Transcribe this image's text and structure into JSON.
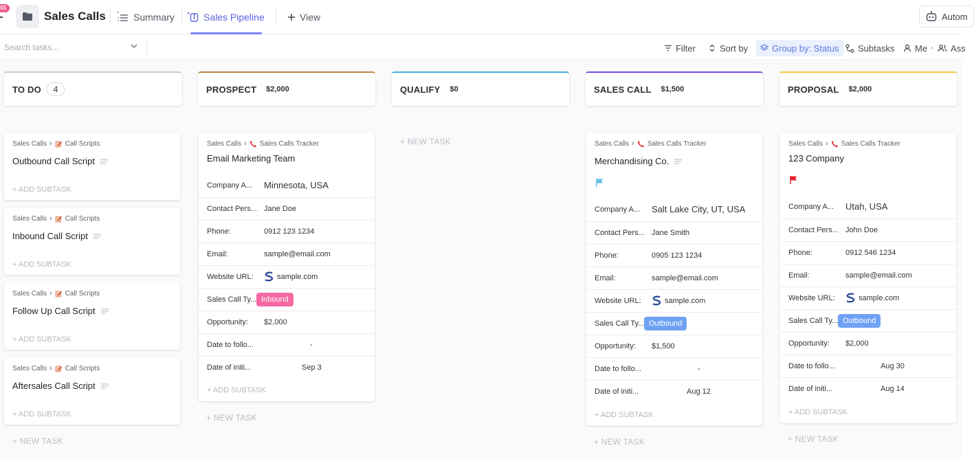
{
  "window": {
    "notification_count": "01",
    "title": "Sales Calls",
    "tabs": [
      {
        "label": "Summary"
      },
      {
        "label": "Sales Pipeline"
      },
      {
        "label": "View"
      }
    ],
    "automate_label": "Autom"
  },
  "toolbar": {
    "search_placeholder": "Search tasks...",
    "filter": "Filter",
    "sort": "Sort by",
    "group": "Group by: Status",
    "subtasks": "Subtasks",
    "me": "Me",
    "assignees": "Ass"
  },
  "columns": [
    {
      "name": "TO DO",
      "count": "4",
      "color": "#c8cacf"
    },
    {
      "name": "PROSPECT",
      "amount": "$2,000",
      "color": "#b98544"
    },
    {
      "name": "QUALIFY",
      "amount": "$0",
      "color": "#41b5e3"
    },
    {
      "name": "SALES CALL",
      "amount": "$1,500",
      "color": "#7a4de0"
    },
    {
      "name": "PROPOSAL",
      "amount": "$2,000",
      "color": "#f2cb3c"
    }
  ],
  "field_labels": {
    "company": "Company A...",
    "contact": "Contact Pers...",
    "phone": "Phone:",
    "email": "Email:",
    "website": "Website URL:",
    "type": "Sales Call Ty...",
    "opportunity": "Opportunity:",
    "follow": "Date to follo...",
    "initial": "Date of initi..."
  },
  "todo_cards": [
    {
      "crumb_list": "Sales Calls",
      "crumb_folder": "Call Scripts",
      "title": "Outbound Call Script",
      "add_subtask": "+ ADD SUBTASK"
    },
    {
      "crumb_list": "Sales Calls",
      "crumb_folder": "Call Scripts",
      "title": "Inbound Call Script",
      "add_subtask": "+ ADD SUBTASK"
    },
    {
      "crumb_list": "Sales Calls",
      "crumb_folder": "Call Scripts",
      "title": "Follow Up Call Script",
      "add_subtask": "+ ADD SUBTASK"
    },
    {
      "crumb_list": "Sales Calls",
      "crumb_folder": "Call Scripts",
      "title": "Aftersales Call Script",
      "add_subtask": "+ ADD SUBTASK"
    }
  ],
  "deal_cards": [
    {
      "crumb_list": "Sales Calls",
      "crumb_folder": "Sales Calls Tracker",
      "title": "Email Marketing Team",
      "company": "Minnesota, USA",
      "contact": "Jane Doe",
      "phone": "0912 123 1234",
      "email": "sample@email.com",
      "website": "sample.com",
      "type": "Inbound",
      "opportunity": "$2,000",
      "follow": "-",
      "initial": "Sep 3",
      "add_subtask": "+ ADD SUBTASK"
    },
    {
      "crumb_list": "Sales Calls",
      "crumb_folder": "Sales Calls Tracker",
      "title": "Merchandising Co.",
      "flag_color": "#5fc0ea",
      "company": "Salt Lake City, UT, USA",
      "contact": "Jane Smith",
      "phone": "0905 123 1234",
      "email": "sample@email.com",
      "website": "sample.com",
      "type": "Outbound",
      "opportunity": "$1,500",
      "follow": "-",
      "initial": "Aug 12",
      "add_subtask": "+ ADD SUBTASK"
    },
    {
      "crumb_list": "Sales Calls",
      "crumb_folder": "Sales Calls Tracker",
      "title": "123 Company",
      "flag_color": "#e8212b",
      "company": "Utah, USA",
      "contact": "John Doe",
      "phone": "0912 546 1234",
      "email": "sample@email.com",
      "website": "sample.com",
      "type": "Outbound",
      "opportunity": "$2,000",
      "follow": "Aug 30",
      "initial": "Aug 14",
      "add_subtask": "+ ADD SUBTASK"
    }
  ],
  "new_task_label": "+ NEW TASK"
}
